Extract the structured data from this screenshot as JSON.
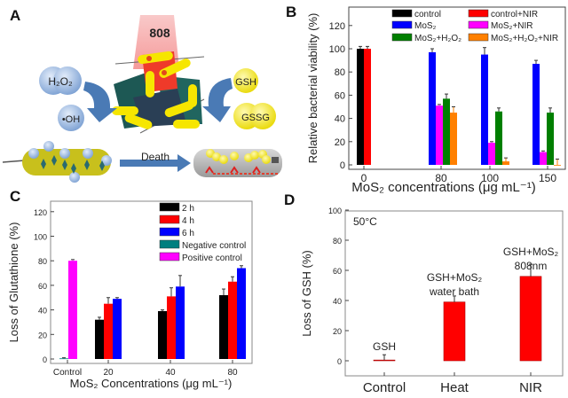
{
  "panel_labels": {
    "a": "A",
    "b": "B",
    "c": "C",
    "d": "D"
  },
  "schematic": {
    "laser_label": "808",
    "h2o2_label": "H₂O₂",
    "oh_label": "•OH",
    "gsh_label": "GSH",
    "gssg_label": "GSSG",
    "death_label": "Death",
    "colors": {
      "laser": "#f7b4b4",
      "sphere_blue": "#8fb0dc",
      "sphere_yellow": "#f2e200",
      "arrow": "#4a7ab5",
      "sheet_teal": "#1e5e5a",
      "bacterium_live": "#c9c21a",
      "bacterium_dead": "#b5b5b5"
    }
  },
  "chart_data": [
    {
      "id": "B",
      "type": "bar",
      "title": "",
      "xlabel": "MoS₂ concentrations (μg mL⁻¹)",
      "ylabel": "Relative bacterial viability (%)",
      "ylim": [
        0,
        130
      ],
      "yticks": [
        0,
        20,
        40,
        60,
        80,
        100,
        120
      ],
      "categories": [
        "0",
        "80",
        "100",
        "150"
      ],
      "legend_position": "top",
      "series": [
        {
          "name": "control",
          "color": "#000000",
          "values": [
            100,
            null,
            null,
            null
          ],
          "errors": [
            2,
            null,
            null,
            null
          ]
        },
        {
          "name": "control+NIR",
          "color": "#ff0000",
          "values": [
            100,
            null,
            null,
            null
          ],
          "errors": [
            2,
            null,
            null,
            null
          ]
        },
        {
          "name": "MoS₂",
          "color": "#0000ff",
          "values": [
            null,
            97,
            95,
            87
          ],
          "errors": [
            null,
            3,
            6,
            3
          ]
        },
        {
          "name": "MoS₂+NIR",
          "color": "#ff00ff",
          "values": [
            null,
            51,
            19,
            11
          ],
          "errors": [
            null,
            1,
            1,
            1
          ]
        },
        {
          "name": "MoS₂+H₂O₂",
          "color": "#007f00",
          "values": [
            null,
            57,
            46,
            45
          ],
          "errors": [
            null,
            4,
            3,
            4
          ]
        },
        {
          "name": "MoS₂+H₂O₂+NIR",
          "color": "#ff8000",
          "values": [
            null,
            45,
            3,
            0
          ],
          "errors": [
            null,
            5,
            3,
            5
          ]
        }
      ]
    },
    {
      "id": "C",
      "type": "bar",
      "title": "",
      "xlabel": "MoS₂ Concentrations (μg mL⁻¹)",
      "ylabel": "Loss of Glutathione (%)",
      "ylim": [
        0,
        130
      ],
      "yticks": [
        0,
        20,
        40,
        60,
        80,
        100,
        120
      ],
      "categories": [
        "Control",
        "20",
        "40",
        "80"
      ],
      "legend_position": "top-right",
      "series": [
        {
          "name": "2 h",
          "color": "#000000",
          "values": [
            null,
            32,
            39,
            52
          ],
          "errors": [
            null,
            2,
            1,
            5
          ]
        },
        {
          "name": "4 h",
          "color": "#ff0000",
          "values": [
            null,
            45,
            51,
            63
          ],
          "errors": [
            null,
            5,
            7,
            4
          ]
        },
        {
          "name": "6 h",
          "color": "#0000ff",
          "values": [
            null,
            49,
            59,
            74
          ],
          "errors": [
            null,
            1,
            9,
            2
          ]
        },
        {
          "name": "Negative control",
          "color": "#007f7f",
          "values": [
            0.5,
            null,
            null,
            null
          ],
          "errors": [
            0.5,
            null,
            null,
            null
          ]
        },
        {
          "name": "Positive control",
          "color": "#ff00ff",
          "values": [
            80,
            null,
            null,
            null
          ],
          "errors": [
            1,
            null,
            null,
            null
          ]
        }
      ]
    },
    {
      "id": "D",
      "type": "bar",
      "title": "",
      "xlabel": "",
      "ylabel": "Loss of GSH (%)",
      "ylim": [
        -10,
        100
      ],
      "yticks": [
        0,
        20,
        40,
        60,
        80,
        100
      ],
      "categories": [
        "Control",
        "Heat",
        "NIR"
      ],
      "annotation": "50°C",
      "bar_labels": [
        [
          "GSH"
        ],
        [
          "GSH+MoS₂",
          "water bath"
        ],
        [
          "GSH+MoS₂",
          "808nm"
        ]
      ],
      "series": [
        {
          "name": "Loss of GSH",
          "color": "#ff0000",
          "values": [
            0.5,
            39,
            56
          ],
          "errors": [
            3.5,
            4,
            8
          ]
        }
      ]
    }
  ]
}
